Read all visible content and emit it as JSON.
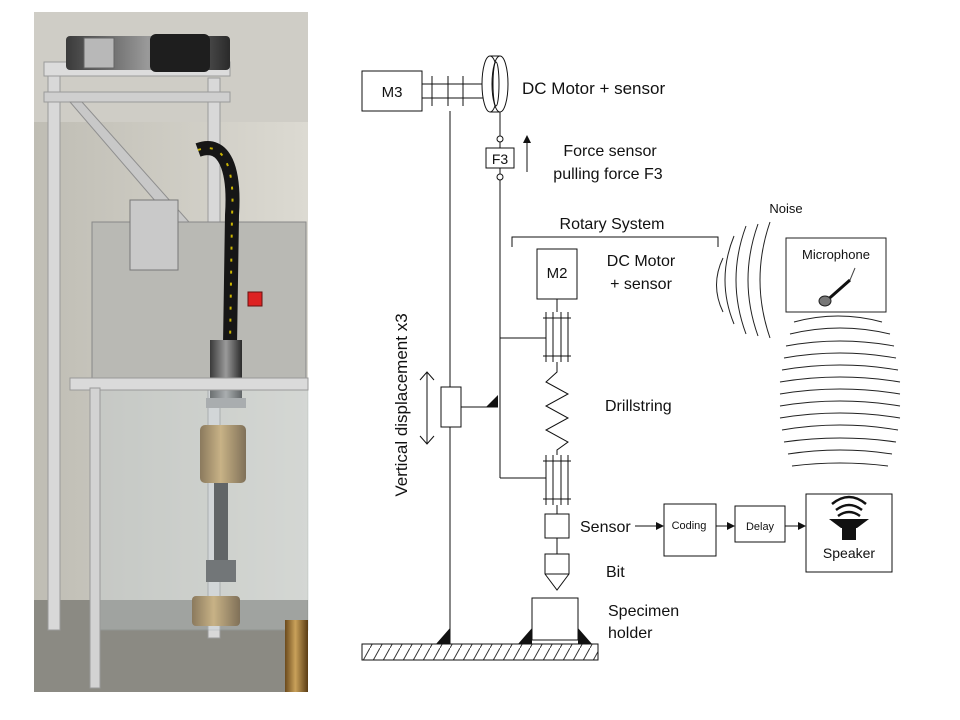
{
  "diagram": {
    "motor_m3_box": "M3",
    "motor_top_label": "DC Motor + sensor",
    "force_box": "F3",
    "force_label_line1": "Force sensor",
    "force_label_line2": "pulling force F3",
    "rotary_system_label": "Rotary System",
    "motor_m2_box": "M2",
    "motor_m2_label_line1": "DC Motor",
    "motor_m2_label_line2": "+ sensor",
    "drillstring_label": "Drillstring",
    "vertical_label": "Vertical displacement x3",
    "sensor_label": "Sensor",
    "bit_label": "Bit",
    "specimen_line1": "Specimen",
    "specimen_line2": "holder",
    "noise_label": "Noise",
    "microphone_label": "Microphone",
    "coding_box": "Coding",
    "delay_box": "Delay",
    "speaker_label": "Speaker"
  }
}
